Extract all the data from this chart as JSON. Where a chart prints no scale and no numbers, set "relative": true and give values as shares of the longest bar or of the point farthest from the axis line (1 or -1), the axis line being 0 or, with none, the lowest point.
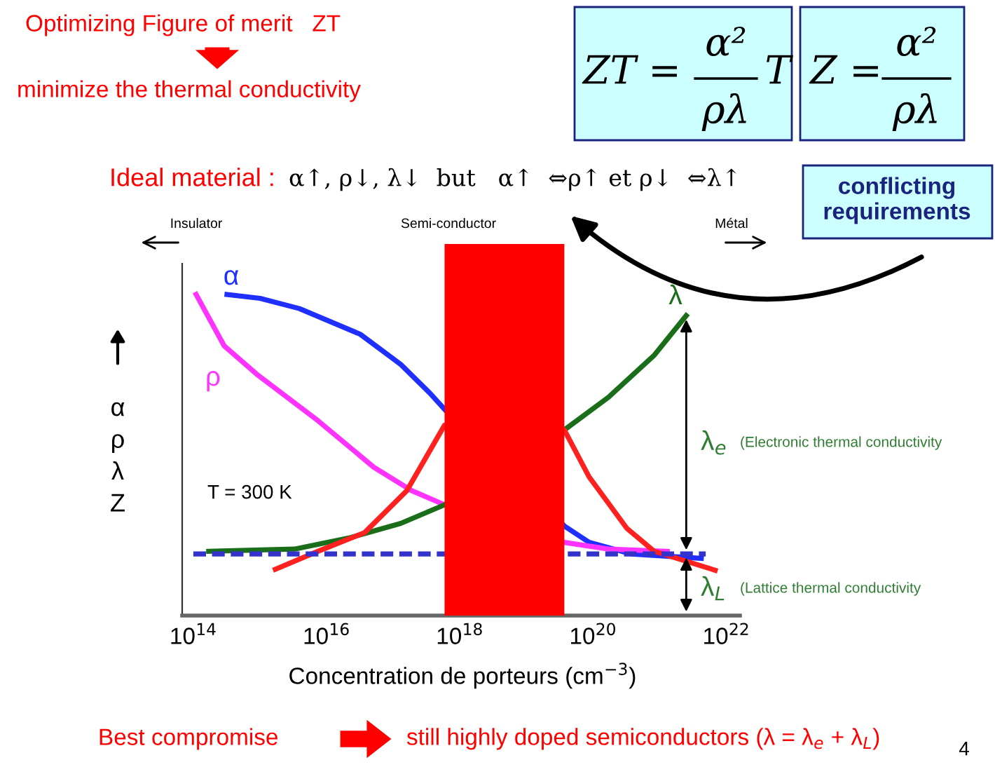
{
  "chart_data": {
    "type": "line",
    "relative": true,
    "log": "x",
    "xlabel": "Concentration de porteurs (cm$^{−3}$)",
    "ylabel": "α\nρ\nλ\nZ",
    "xlim": [
      68000000000000.0,
      1.6e+22
    ],
    "xticks": [
      {
        "value": 100000000000000.0,
        "label": "10$^{14}$"
      },
      {
        "value": 1e+16,
        "label": "10$^{16}$"
      },
      {
        "value": 1e+18,
        "label": "10$^{18}$"
      },
      {
        "value": 1e+20,
        "label": "10$^{20}$"
      },
      {
        "value": 1e+22,
        "label": "10$^{22}$"
      }
    ],
    "grid": false,
    "legend": false,
    "marker": "none",
    "series": [
      {
        "name": "α",
        "color": "#1f2fff",
        "x": [
          320000000000000.0,
          1000000000000000.0,
          3900000000000000.0,
          3.2e+16,
          1.3e+17,
          3.5e+17,
          6.3e+17,
          3.7e+19,
          8.7e+19,
          3.7e+20,
          4.2e+21
        ],
        "values": [
          1.0,
          0.988,
          0.956,
          0.876,
          0.782,
          0.694,
          0.636,
          0.279,
          0.228,
          0.192,
          0.178
        ]
      },
      {
        "name": "ρ",
        "color": "#ff33ff",
        "x": [
          110000000000000.0,
          290000000000000.0,
          890000000000000.0,
          7400000000000000.0,
          5.1e+16,
          1.9e+17,
          5.9e+17,
          3.7e+19,
          1.7e+20,
          1.3e+21
        ],
        "values": [
          1.0,
          0.84,
          0.752,
          0.607,
          0.462,
          0.389,
          0.345,
          0.228,
          0.207,
          0.2
        ]
      },
      {
        "name": "λ",
        "color": "#1a6e1a",
        "x": [
          170000000000000.0,
          3300000000000000.0,
          2.3e+16,
          1.3e+17,
          5.9e+17,
          3.7e+19,
          1.7e+20,
          8.3e+20,
          2.5e+21
        ],
        "values": [
          0.2,
          0.207,
          0.243,
          0.287,
          0.345,
          0.578,
          0.68,
          0.811,
          0.934
        ]
      },
      {
        "color": "#ff2020",
        "x": [
          1700000000000000.0,
          7400000000000000.0,
          3.7e+16,
          1.6e+17,
          5.9e+17,
          3.7e+19,
          8.7e+19,
          3.2e+20,
          8.3e+20,
          6.8e+21
        ],
        "values": [
          0.144,
          0.2,
          0.258,
          0.389,
          0.593,
          0.578,
          0.432,
          0.272,
          0.2,
          0.141
        ]
      },
      {
        "color": "#3333cc",
        "line_style": "dashed",
        "x": [
          100000000000000.0,
          4.9e+21
        ],
        "values": [
          0.192,
          0.192
        ]
      }
    ],
    "bands": [
      {
        "axis": "x",
        "from": 5.9e+17,
        "to": 3.7e+19,
        "color": "#ff0000"
      }
    ],
    "annotations": [
      "Optimizing Figure of merit   ZT",
      "minimize the thermal conductivity",
      "ZT =",
      "α²",
      "ρλ",
      "T",
      "Z =",
      "α²",
      "ρλ",
      "Ideal material :",
      "α↑, ρ↓, λ↓  but   α↑  ⇔ρ↑ et ρ↓  ⇔λ↑",
      "conflicting\nrequirements",
      "Insulator",
      "Semi-conductor",
      "Métal",
      "T = 300 K",
      "λ$_{e}$",
      "(Electronic thermal conductivity",
      "λ$_{L}$",
      "(Lattice thermal conductivity",
      "Best compromise",
      "still highly doped semiconductors (λ = λ$_{e}$ + λ$_{L}$)",
      "4"
    ]
  }
}
